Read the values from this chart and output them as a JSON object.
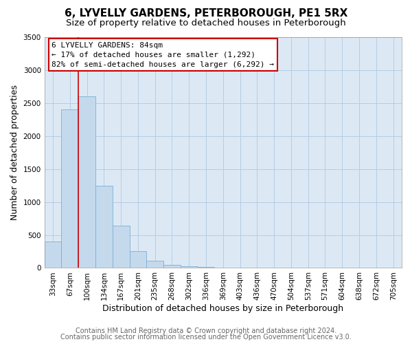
{
  "title": "6, LYVELLY GARDENS, PETERBOROUGH, PE1 5RX",
  "subtitle": "Size of property relative to detached houses in Peterborough",
  "xlabel": "Distribution of detached houses by size in Peterborough",
  "ylabel": "Number of detached properties",
  "bar_labels": [
    "33sqm",
    "67sqm",
    "100sqm",
    "134sqm",
    "167sqm",
    "201sqm",
    "235sqm",
    "268sqm",
    "302sqm",
    "336sqm",
    "369sqm",
    "403sqm",
    "436sqm",
    "470sqm",
    "504sqm",
    "537sqm",
    "571sqm",
    "604sqm",
    "638sqm",
    "672sqm",
    "705sqm"
  ],
  "bar_values": [
    400,
    2400,
    2600,
    1250,
    640,
    260,
    110,
    50,
    25,
    10,
    5,
    0,
    0,
    0,
    0,
    0,
    0,
    0,
    0,
    0,
    0
  ],
  "bar_color": "#c5d9ed",
  "bar_edge_color": "#7aafd4",
  "highlight_line_color": "#cc0000",
  "highlight_box_text_line1": "6 LYVELLY GARDENS: 84sqm",
  "highlight_box_text_line2": "← 17% of detached houses are smaller (1,292)",
  "highlight_box_text_line3": "82% of semi-detached houses are larger (6,292) →",
  "highlight_box_facecolor": "#ffffff",
  "highlight_box_edgecolor": "#cc0000",
  "ylim": [
    0,
    3500
  ],
  "yticks": [
    0,
    500,
    1000,
    1500,
    2000,
    2500,
    3000,
    3500
  ],
  "footer_line1": "Contains HM Land Registry data © Crown copyright and database right 2024.",
  "footer_line2": "Contains public sector information licensed under the Open Government Licence v3.0.",
  "background_color": "#ffffff",
  "plot_bg_color": "#dce9f5",
  "grid_color": "#b0c8e0",
  "title_fontsize": 11,
  "subtitle_fontsize": 9.5,
  "axis_label_fontsize": 9,
  "tick_fontsize": 7.5,
  "footer_fontsize": 7,
  "annotation_fontsize": 8
}
